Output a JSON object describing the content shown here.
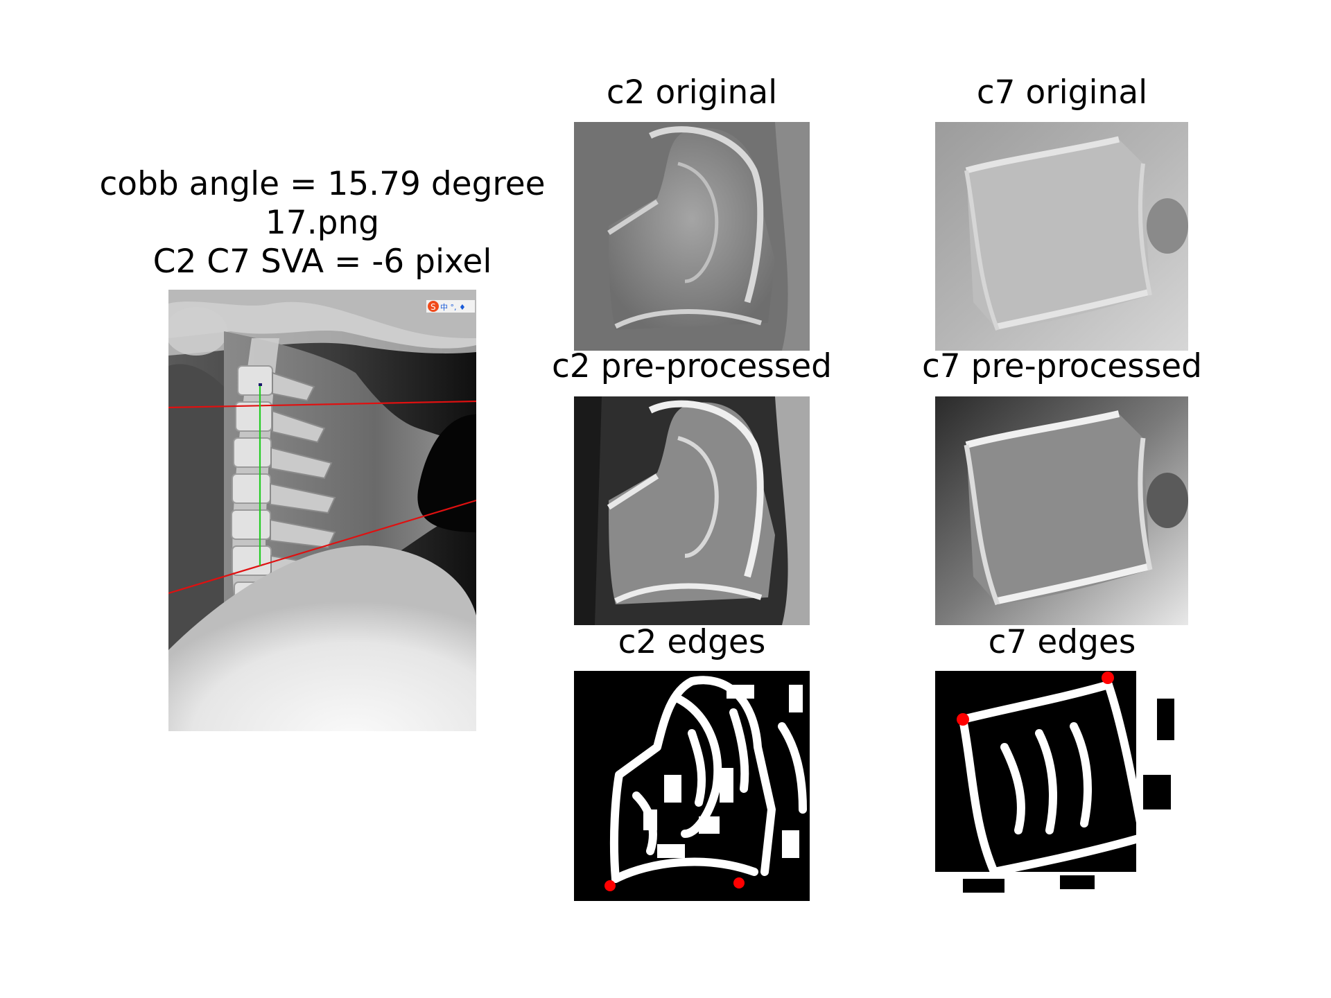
{
  "figure": {
    "main_title": {
      "line1": "cobb angle = 15.79 degree",
      "line2": "17.png",
      "line3": "C2 C7 SVA = -6 pixel"
    },
    "panels": {
      "c2_original": "c2 original",
      "c7_original": "c7 original",
      "c2_preprocessed": "c2 pre-processed",
      "c7_preprocessed": "c7 pre-processed",
      "c2_edges": "c2 edges",
      "c7_edges": "c7 edges"
    },
    "xray_toolbar_glyphs": "中 °, ♦",
    "colors": {
      "cobb_lines": "#e01010",
      "sva_line": "#22cc22",
      "edge_points": "#ff0000",
      "background": "#ffffff"
    }
  }
}
